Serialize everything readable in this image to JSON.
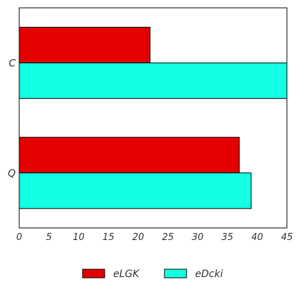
{
  "chart_data": {
    "type": "bar",
    "orientation": "horizontal",
    "categories": [
      "C",
      "Q"
    ],
    "series": [
      {
        "name": "eLGK",
        "values": [
          22,
          37
        ],
        "color": "#e50000"
      },
      {
        "name": "eDcki",
        "values": [
          45,
          39
        ],
        "color": "#13ffe3"
      }
    ],
    "x_ticks": [
      0,
      5,
      10,
      15,
      20,
      25,
      30,
      35,
      40,
      45
    ],
    "xlim": [
      0,
      45
    ],
    "title": "",
    "xlabel": "",
    "ylabel": "",
    "grid": false,
    "legend_position": "bottom-center"
  }
}
